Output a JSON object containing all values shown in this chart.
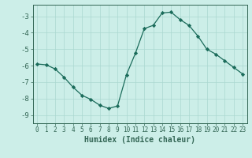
{
  "x": [
    0,
    1,
    2,
    3,
    4,
    5,
    6,
    7,
    8,
    9,
    10,
    11,
    12,
    13,
    14,
    15,
    16,
    17,
    18,
    19,
    20,
    21,
    22,
    23
  ],
  "y": [
    -5.9,
    -5.95,
    -6.2,
    -6.7,
    -7.3,
    -7.8,
    -8.05,
    -8.4,
    -8.6,
    -8.45,
    -6.55,
    -5.25,
    -3.75,
    -3.55,
    -2.8,
    -2.75,
    -3.2,
    -3.55,
    -4.2,
    -5.0,
    -5.3,
    -5.7,
    -6.1,
    -6.5
  ],
  "line_color": "#1a6b5a",
  "marker": "D",
  "marker_size": 2.2,
  "xlabel": "Humidex (Indice chaleur)",
  "xlim": [
    -0.5,
    23.5
  ],
  "ylim": [
    -9.5,
    -2.3
  ],
  "yticks": [
    -9,
    -8,
    -7,
    -6,
    -5,
    -4,
    -3
  ],
  "xticks": [
    0,
    1,
    2,
    3,
    4,
    5,
    6,
    7,
    8,
    9,
    10,
    11,
    12,
    13,
    14,
    15,
    16,
    17,
    18,
    19,
    20,
    21,
    22,
    23
  ],
  "bg_color": "#cceee8",
  "grid_color": "#aad8d0",
  "spine_color": "#336655",
  "tick_color": "#336655",
  "label_color": "#336655"
}
